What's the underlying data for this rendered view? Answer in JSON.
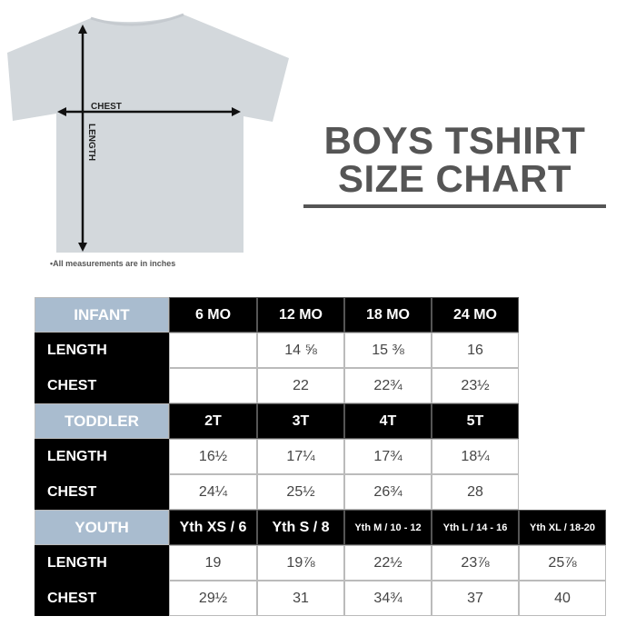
{
  "diagram": {
    "chest_label": "CHEST",
    "length_label": "LENGTH",
    "note": "•All measurements are in inches",
    "shirt_color": "#d3d8dc"
  },
  "title": {
    "line1": "BOYS TSHIRT",
    "line2": "SIZE CHART"
  },
  "colors": {
    "group_header": "#a9bccf",
    "header": "#000000",
    "text": "#555555"
  },
  "groups": [
    {
      "name": "INFANT",
      "sizes": [
        "6 MO",
        "12 MO",
        "18 MO",
        "24 MO"
      ],
      "rows": [
        {
          "label": "LENGTH",
          "values": [
            "",
            "14 ⅝",
            "15 ⅜",
            "16"
          ]
        },
        {
          "label": "CHEST",
          "values": [
            "",
            "22",
            "22¾",
            "23½"
          ]
        }
      ]
    },
    {
      "name": "TODDLER",
      "sizes": [
        "2T",
        "3T",
        "4T",
        "5T"
      ],
      "rows": [
        {
          "label": "LENGTH",
          "values": [
            "16½",
            "17¼",
            "17¾",
            "18¼"
          ]
        },
        {
          "label": "CHEST",
          "values": [
            "24¼",
            "25½",
            "26¾",
            "28"
          ]
        }
      ]
    },
    {
      "name": "YOUTH",
      "sizes": [
        "Yth XS / 6",
        "Yth S / 8",
        "Yth M / 10 - 12",
        "Yth L / 14 - 16",
        "Yth XL / 18-20"
      ],
      "rows": [
        {
          "label": "LENGTH",
          "values": [
            "19",
            "19⅞",
            "22½",
            "23⅞",
            "25⅞"
          ]
        },
        {
          "label": "CHEST",
          "values": [
            "29½",
            "31",
            "34¾",
            "37",
            "40"
          ]
        }
      ]
    }
  ]
}
